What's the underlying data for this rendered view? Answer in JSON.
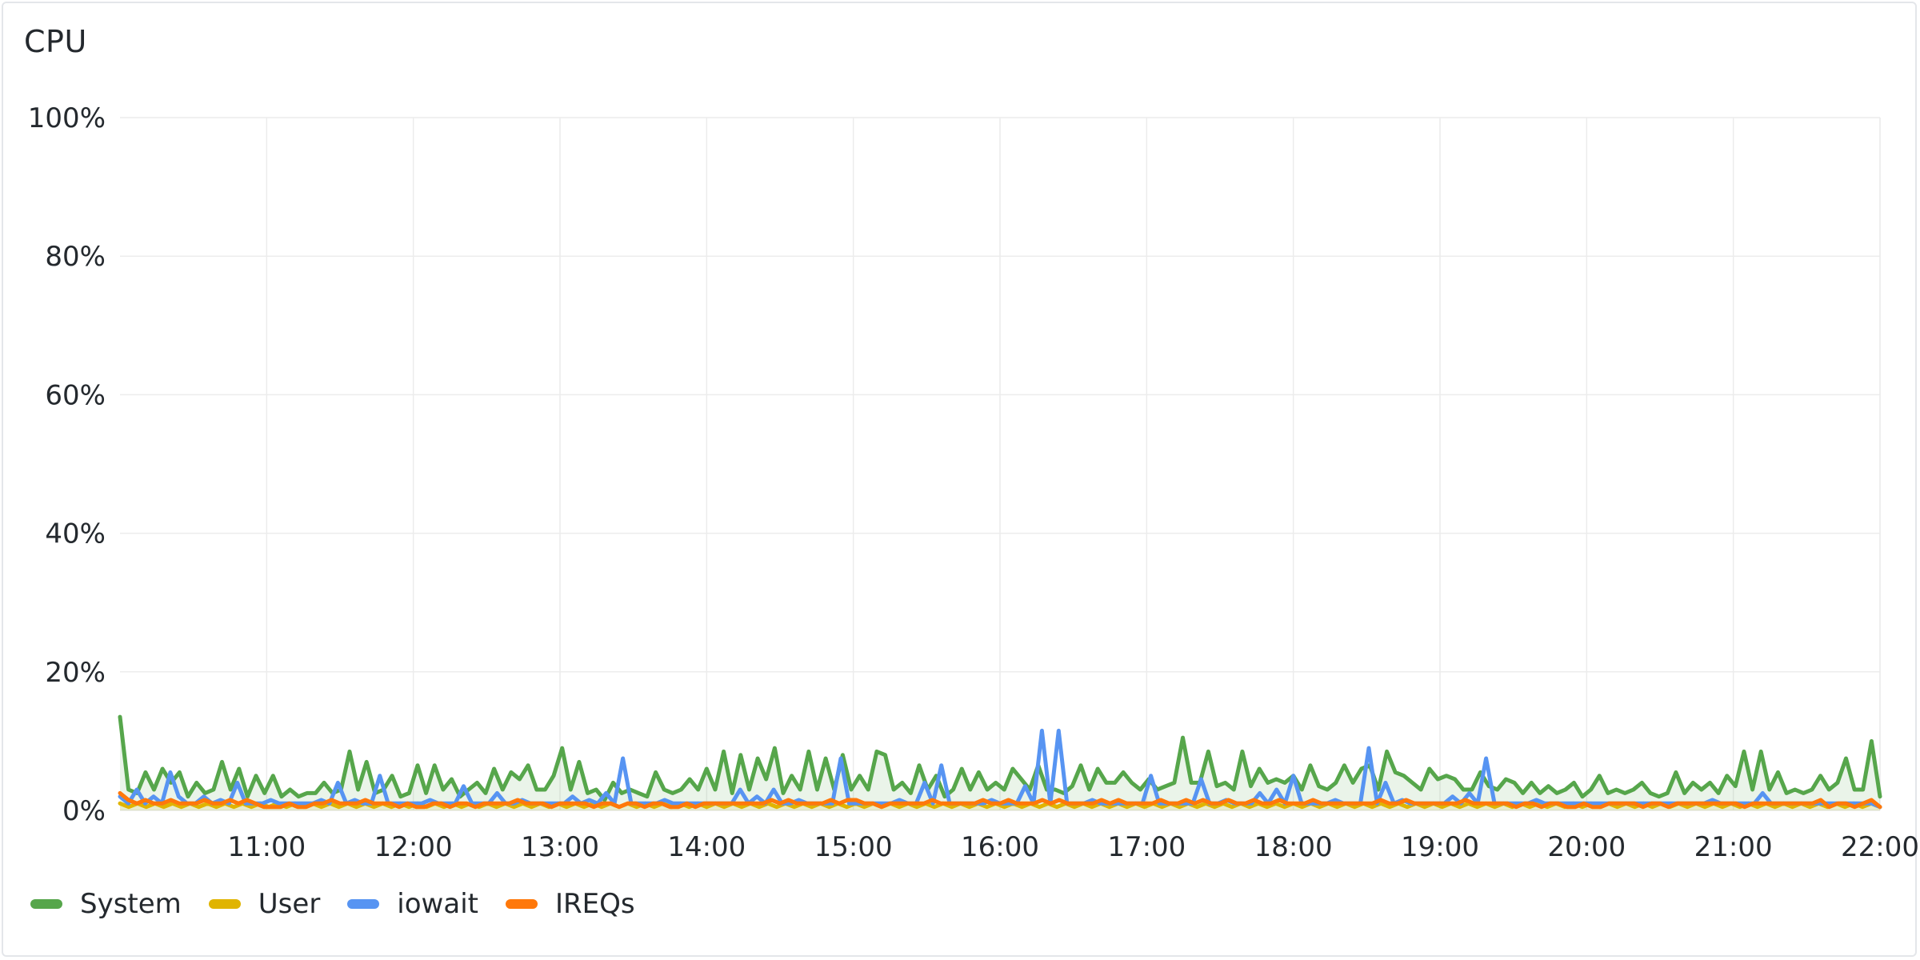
{
  "panel": {
    "title": "CPU"
  },
  "chart_data": {
    "type": "line",
    "title": "CPU",
    "xlabel": "",
    "ylabel": "",
    "x_start": "10:00",
    "x_end": "22:00",
    "x_ticks": [
      "11:00",
      "12:00",
      "13:00",
      "14:00",
      "15:00",
      "16:00",
      "17:00",
      "18:00",
      "19:00",
      "20:00",
      "21:00",
      "22:00"
    ],
    "y_ticks": [
      "0%",
      "20%",
      "40%",
      "60%",
      "80%",
      "100%"
    ],
    "ylim": [
      0,
      100
    ],
    "grid": true,
    "legend_position": "bottom-left",
    "series": [
      {
        "name": "System",
        "color": "#56a64b",
        "fill": true,
        "values": [
          13.5,
          3,
          2.5,
          5.5,
          3,
          6,
          4,
          5.5,
          2,
          4,
          2.5,
          3,
          7,
          3,
          6,
          2,
          5,
          2.5,
          5,
          2,
          3,
          2,
          2.5,
          2.5,
          4,
          2.5,
          3,
          8.5,
          3,
          7,
          2.5,
          3,
          5,
          2,
          2.5,
          6.5,
          2.5,
          6.5,
          3,
          4.5,
          2,
          3,
          4,
          2.5,
          6,
          3,
          5.5,
          4.5,
          6.5,
          3,
          3,
          5,
          9,
          3,
          7,
          2.5,
          3,
          1.5,
          4,
          2.5,
          3,
          2.5,
          2,
          5.5,
          3,
          2.5,
          3,
          4.5,
          3,
          6,
          3,
          8.5,
          2.5,
          8,
          3,
          7.5,
          4.5,
          9,
          2.5,
          5,
          3,
          8.5,
          3,
          7.5,
          3,
          8,
          3,
          5,
          3,
          8.5,
          8,
          3,
          4,
          2.5,
          6.5,
          3,
          5,
          2,
          3,
          6,
          3,
          5.5,
          3,
          4,
          3,
          6,
          4.5,
          3,
          6.5,
          3,
          3,
          2.5,
          3.5,
          6.5,
          3,
          6,
          4,
          4,
          5.5,
          4,
          3,
          4.5,
          3,
          3.5,
          4,
          10.5,
          4,
          4,
          8.5,
          3.5,
          4,
          3,
          8.5,
          3.5,
          6,
          4,
          4.5,
          4,
          5,
          3,
          6.5,
          3.5,
          3,
          4,
          6.5,
          4,
          6,
          6.5,
          3,
          8.5,
          5.5,
          5,
          4,
          3,
          6,
          4.5,
          5,
          4.5,
          3,
          3,
          5.5,
          3.5,
          3,
          4.5,
          4,
          2.5,
          4,
          2.5,
          3.5,
          2.5,
          3,
          4,
          2,
          3,
          5,
          2.5,
          3,
          2.5,
          3,
          4,
          2.5,
          2,
          2.5,
          5.5,
          2.5,
          4,
          3,
          4,
          2.5,
          5,
          3.5,
          8.5,
          3,
          8.5,
          3,
          5.5,
          2.5,
          3,
          2.5,
          3,
          5,
          3,
          4,
          7.5,
          3,
          3,
          10,
          2
        ]
      },
      {
        "name": "User",
        "color": "#e0b400",
        "fill": true,
        "values": [
          1,
          0.5,
          1,
          0.5,
          1,
          0.5,
          1,
          0.5,
          1,
          0.5,
          1,
          0.5,
          1,
          0.5,
          1,
          0.5,
          1,
          0.5,
          1,
          0.5,
          1,
          0.5,
          1,
          0.5,
          1,
          0.5,
          1,
          0.5,
          1,
          0.5,
          1,
          0.5,
          1,
          0.5,
          1,
          0.5,
          1,
          0.5,
          1,
          0.5,
          1,
          0.5,
          1,
          0.5,
          1,
          0.5,
          1,
          0.5,
          1,
          0.5,
          1,
          0.5,
          1,
          0.5,
          1,
          0.5,
          1,
          0.5,
          1,
          0.5,
          1,
          0.5,
          1,
          0.5,
          1,
          0.5,
          1,
          0.5,
          1,
          0.5,
          1,
          0.5,
          1,
          0.5,
          1,
          0.5,
          1,
          0.5,
          1,
          0.5,
          1,
          0.5,
          1,
          0.5,
          1,
          0.5,
          1,
          0.5,
          1,
          0.5,
          1,
          0.5,
          1,
          0.5,
          1,
          0.5,
          1,
          0.5,
          1,
          0.5,
          1,
          0.5,
          1,
          0.5,
          1,
          0.5,
          1,
          0.5,
          1,
          0.5,
          1,
          0.5,
          1,
          0.5,
          1,
          0.5,
          1,
          0.5,
          1,
          0.5,
          1,
          0.5,
          1,
          0.5,
          1,
          0.5,
          1,
          0.5,
          1,
          0.5,
          1,
          0.5,
          1,
          0.5,
          1,
          0.5,
          1,
          0.5,
          1,
          0.5,
          1,
          0.5,
          1,
          0.5,
          1,
          0.5,
          1,
          0.5,
          1,
          0.5,
          1,
          0.5,
          1,
          0.5,
          1,
          0.5,
          1,
          0.5,
          1,
          0.5,
          1,
          0.5,
          1,
          0.5,
          1,
          0.5,
          1,
          0.5,
          1,
          0.5,
          1,
          0.5,
          1,
          0.5,
          1,
          0.5,
          1,
          0.5,
          1,
          0.5,
          1,
          0.5,
          1,
          0.5,
          1,
          0.5,
          1,
          0.5,
          1,
          0.5,
          1,
          0.5,
          1,
          0.5,
          1,
          0.5,
          1,
          0.5,
          1,
          0.5,
          1,
          0.5
        ]
      },
      {
        "name": "iowait",
        "color": "#5794f2",
        "fill": false,
        "values": [
          2,
          1,
          3,
          1,
          2,
          1,
          5.5,
          2,
          1,
          1,
          2,
          1,
          1.5,
          1,
          4,
          1,
          1,
          1,
          1.5,
          1,
          1,
          1,
          1,
          1,
          1.5,
          1,
          4,
          1,
          1.5,
          1,
          1,
          5,
          1,
          1,
          1,
          1,
          1,
          1.5,
          1,
          1,
          1,
          3.5,
          1,
          1,
          1,
          2.5,
          1,
          1,
          1.5,
          1,
          1,
          1,
          1,
          1,
          2,
          1,
          1.5,
          1,
          2.5,
          1,
          7.5,
          1,
          1,
          1,
          1,
          1.5,
          1,
          1,
          1,
          1,
          1,
          1,
          1,
          1,
          3,
          1,
          2,
          1,
          3,
          1,
          1,
          1.5,
          1,
          1,
          1,
          1,
          7.5,
          1,
          1,
          1,
          1,
          1,
          1,
          1.5,
          1,
          1,
          4,
          1,
          6.5,
          1,
          1,
          1,
          1,
          1,
          1.5,
          1,
          1,
          1,
          3.5,
          1,
          11.5,
          1,
          11.5,
          1,
          1,
          1,
          1.5,
          1,
          1,
          1,
          1,
          1,
          1,
          5,
          1,
          1,
          1,
          1,
          1,
          4.5,
          1,
          1,
          1.5,
          1,
          1,
          1,
          2.5,
          1,
          3,
          1,
          5,
          1,
          1,
          1,
          1,
          1.5,
          1,
          1,
          1,
          9,
          1,
          4,
          1,
          1.5,
          1,
          1,
          1,
          1,
          1,
          2,
          1,
          2.5,
          1,
          7.5,
          1,
          1,
          1,
          1,
          1,
          1.5,
          1,
          1,
          1,
          1,
          1,
          1,
          1,
          1,
          1,
          1,
          1,
          1,
          1,
          1,
          1,
          1,
          1,
          1,
          1,
          1,
          1.5,
          1,
          1,
          1,
          1,
          1,
          2.5,
          1,
          1,
          1,
          1,
          1,
          1,
          1,
          1,
          1,
          1,
          1,
          1,
          1,
          0.5
        ]
      },
      {
        "name": "IREQs",
        "color": "#ff780a",
        "fill": false,
        "values": [
          2.5,
          1.5,
          1,
          1.5,
          1,
          1,
          1.5,
          1,
          1,
          1,
          1.5,
          1,
          1,
          1.5,
          1,
          1.5,
          1,
          0.5,
          0.5,
          0.5,
          1,
          0.5,
          0.5,
          1,
          1,
          1.5,
          1,
          1,
          1,
          1.5,
          1,
          1,
          1,
          0.5,
          1,
          0.5,
          0.5,
          1,
          1,
          0.5,
          1,
          1,
          0.5,
          1,
          1,
          1,
          1,
          1.5,
          1,
          1,
          1,
          0.5,
          1,
          1,
          1,
          1,
          0.5,
          1,
          1,
          0.5,
          1,
          1,
          0.5,
          1,
          1,
          0.5,
          0.5,
          1,
          0.5,
          1,
          1,
          1,
          1,
          1,
          1,
          1,
          1,
          1.5,
          1,
          1.5,
          1,
          1,
          1,
          1,
          1.5,
          1,
          1.5,
          1.5,
          1,
          1,
          0.5,
          1,
          1,
          1,
          1,
          1,
          1.5,
          1,
          1,
          1,
          1,
          1,
          1.5,
          1,
          1,
          1.5,
          1,
          1,
          1,
          1.5,
          1,
          1.5,
          1,
          1,
          1,
          1,
          1.5,
          1,
          1.5,
          1,
          1,
          1,
          1,
          1.5,
          1,
          1,
          1.5,
          1,
          1.5,
          1,
          1,
          1.5,
          1,
          1,
          1.5,
          1,
          1,
          1.5,
          1,
          1,
          1,
          1.5,
          1,
          1,
          1,
          1,
          1,
          1,
          1,
          1.5,
          1,
          1,
          1.5,
          1,
          1,
          1,
          1,
          1,
          1,
          1.5,
          1,
          1,
          1,
          1,
          1,
          0.5,
          1,
          1,
          0.5,
          1,
          1,
          0.5,
          0.5,
          1,
          0.5,
          0.5,
          1,
          1,
          1,
          1,
          0.5,
          1,
          1,
          0.5,
          1,
          1,
          1,
          1,
          1,
          1,
          1,
          1,
          0.5,
          1,
          1,
          1,
          1,
          1,
          1,
          1,
          1,
          1.5,
          0.5,
          1,
          1,
          0.5,
          1,
          1.5,
          0.5
        ]
      }
    ]
  }
}
